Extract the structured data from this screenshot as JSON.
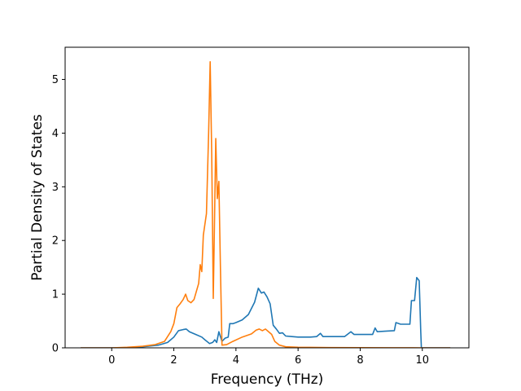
{
  "chart_data": {
    "type": "line",
    "title": "",
    "xlabel": "Frequency (THz)",
    "ylabel": "Partial Density of States",
    "xlim": [
      -1.5,
      11.5
    ],
    "ylim": [
      0,
      5.6
    ],
    "xticks": [
      0,
      2,
      4,
      6,
      8,
      10
    ],
    "yticks": [
      0,
      1,
      2,
      3,
      4,
      5
    ],
    "grid": false,
    "legend": "none",
    "series": [
      {
        "color": "#1f77b4",
        "points": [
          [
            -1.0,
            0
          ],
          [
            0.0,
            0
          ],
          [
            0.5,
            0.005
          ],
          [
            1.0,
            0.02
          ],
          [
            1.5,
            0.05
          ],
          [
            1.8,
            0.1
          ],
          [
            2.0,
            0.2
          ],
          [
            2.15,
            0.32
          ],
          [
            2.3,
            0.34
          ],
          [
            2.4,
            0.35
          ],
          [
            2.5,
            0.3
          ],
          [
            2.7,
            0.25
          ],
          [
            2.9,
            0.2
          ],
          [
            3.0,
            0.15
          ],
          [
            3.15,
            0.08
          ],
          [
            3.25,
            0.1
          ],
          [
            3.32,
            0.15
          ],
          [
            3.38,
            0.1
          ],
          [
            3.45,
            0.3
          ],
          [
            3.55,
            0.12
          ],
          [
            3.65,
            0.18
          ],
          [
            3.75,
            0.2
          ],
          [
            3.8,
            0.45
          ],
          [
            3.9,
            0.45
          ],
          [
            4.0,
            0.47
          ],
          [
            4.2,
            0.52
          ],
          [
            4.4,
            0.62
          ],
          [
            4.6,
            0.85
          ],
          [
            4.72,
            1.11
          ],
          [
            4.82,
            1.02
          ],
          [
            4.9,
            1.04
          ],
          [
            5.0,
            0.95
          ],
          [
            5.1,
            0.82
          ],
          [
            5.2,
            0.42
          ],
          [
            5.3,
            0.35
          ],
          [
            5.4,
            0.27
          ],
          [
            5.5,
            0.28
          ],
          [
            5.6,
            0.22
          ],
          [
            5.8,
            0.21
          ],
          [
            6.0,
            0.2
          ],
          [
            6.4,
            0.2
          ],
          [
            6.6,
            0.21
          ],
          [
            6.72,
            0.27
          ],
          [
            6.8,
            0.21
          ],
          [
            7.0,
            0.21
          ],
          [
            7.5,
            0.21
          ],
          [
            7.7,
            0.3
          ],
          [
            7.8,
            0.25
          ],
          [
            8.0,
            0.25
          ],
          [
            8.4,
            0.25
          ],
          [
            8.48,
            0.37
          ],
          [
            8.55,
            0.3
          ],
          [
            8.8,
            0.31
          ],
          [
            9.1,
            0.32
          ],
          [
            9.15,
            0.47
          ],
          [
            9.3,
            0.44
          ],
          [
            9.6,
            0.44
          ],
          [
            9.65,
            0.88
          ],
          [
            9.75,
            0.88
          ],
          [
            9.82,
            1.31
          ],
          [
            9.9,
            1.25
          ],
          [
            9.95,
            0.3
          ],
          [
            9.97,
            0
          ],
          [
            10.9,
            0
          ]
        ]
      },
      {
        "color": "#ff7f0e",
        "points": [
          [
            -1.0,
            0
          ],
          [
            0.0,
            0
          ],
          [
            0.5,
            0.01
          ],
          [
            1.0,
            0.03
          ],
          [
            1.4,
            0.06
          ],
          [
            1.7,
            0.12
          ],
          [
            1.9,
            0.3
          ],
          [
            2.0,
            0.45
          ],
          [
            2.05,
            0.6
          ],
          [
            2.1,
            0.75
          ],
          [
            2.2,
            0.82
          ],
          [
            2.3,
            0.9
          ],
          [
            2.38,
            1.0
          ],
          [
            2.45,
            0.88
          ],
          [
            2.55,
            0.84
          ],
          [
            2.65,
            0.9
          ],
          [
            2.75,
            1.1
          ],
          [
            2.8,
            1.2
          ],
          [
            2.85,
            1.55
          ],
          [
            2.9,
            1.42
          ],
          [
            2.95,
            2.1
          ],
          [
            3.05,
            2.5
          ],
          [
            3.12,
            4.0
          ],
          [
            3.17,
            5.33
          ],
          [
            3.22,
            3.6
          ],
          [
            3.27,
            0.92
          ],
          [
            3.3,
            2.0
          ],
          [
            3.35,
            3.9
          ],
          [
            3.4,
            2.78
          ],
          [
            3.45,
            3.1
          ],
          [
            3.5,
            1.5
          ],
          [
            3.55,
            0.05
          ],
          [
            3.7,
            0.06
          ],
          [
            3.9,
            0.12
          ],
          [
            4.2,
            0.2
          ],
          [
            4.5,
            0.26
          ],
          [
            4.65,
            0.33
          ],
          [
            4.75,
            0.35
          ],
          [
            4.85,
            0.32
          ],
          [
            4.95,
            0.35
          ],
          [
            5.05,
            0.3
          ],
          [
            5.15,
            0.25
          ],
          [
            5.25,
            0.12
          ],
          [
            5.4,
            0.05
          ],
          [
            5.6,
            0.02
          ],
          [
            6.0,
            0.01
          ],
          [
            7.0,
            0.005
          ],
          [
            9.0,
            0.002
          ],
          [
            10.0,
            0
          ],
          [
            10.9,
            0
          ]
        ]
      }
    ]
  }
}
